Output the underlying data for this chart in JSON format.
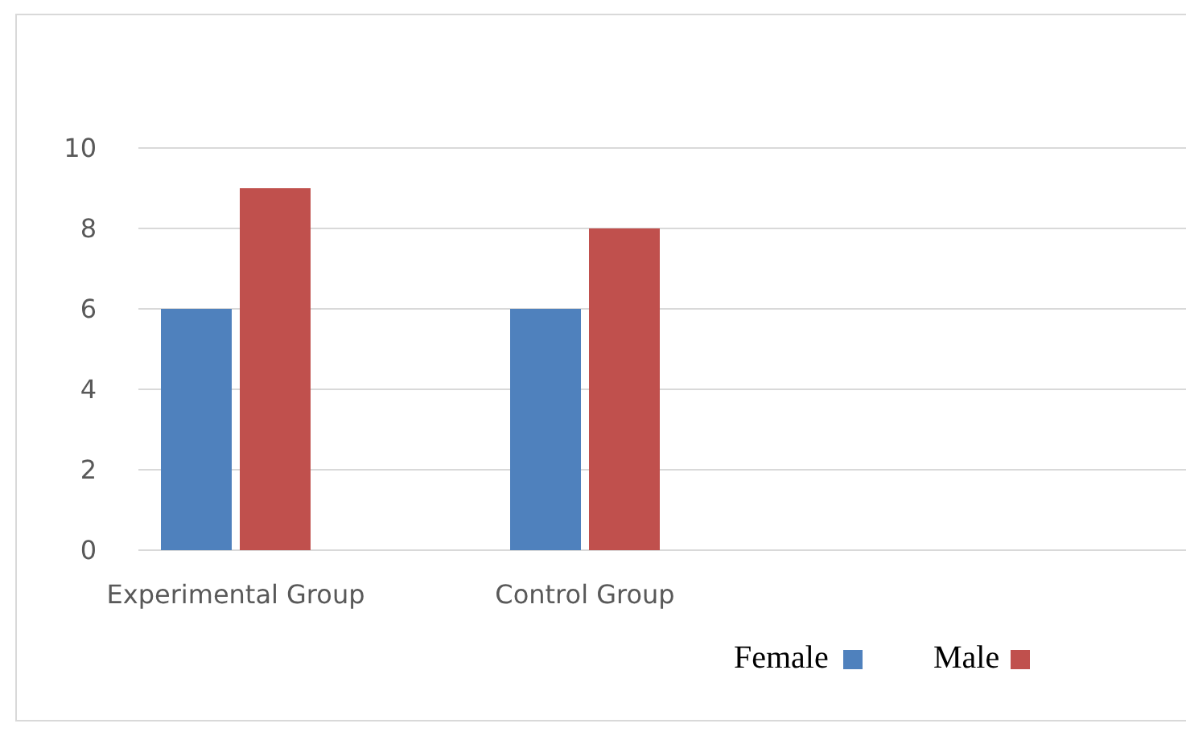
{
  "chart_data": {
    "type": "bar",
    "categories": [
      "Experimental Group",
      "Control Group",
      null
    ],
    "series": [
      {
        "name": "Female",
        "color": "#4f81bd",
        "values": [
          6,
          6,
          null
        ]
      },
      {
        "name": "Male",
        "color": "#c0504d",
        "values": [
          9,
          8,
          null
        ]
      }
    ],
    "ylim": [
      0,
      10
    ],
    "yticks": [
      0,
      2,
      4,
      6,
      8,
      10
    ],
    "grid": "y",
    "legend": "bottom"
  }
}
